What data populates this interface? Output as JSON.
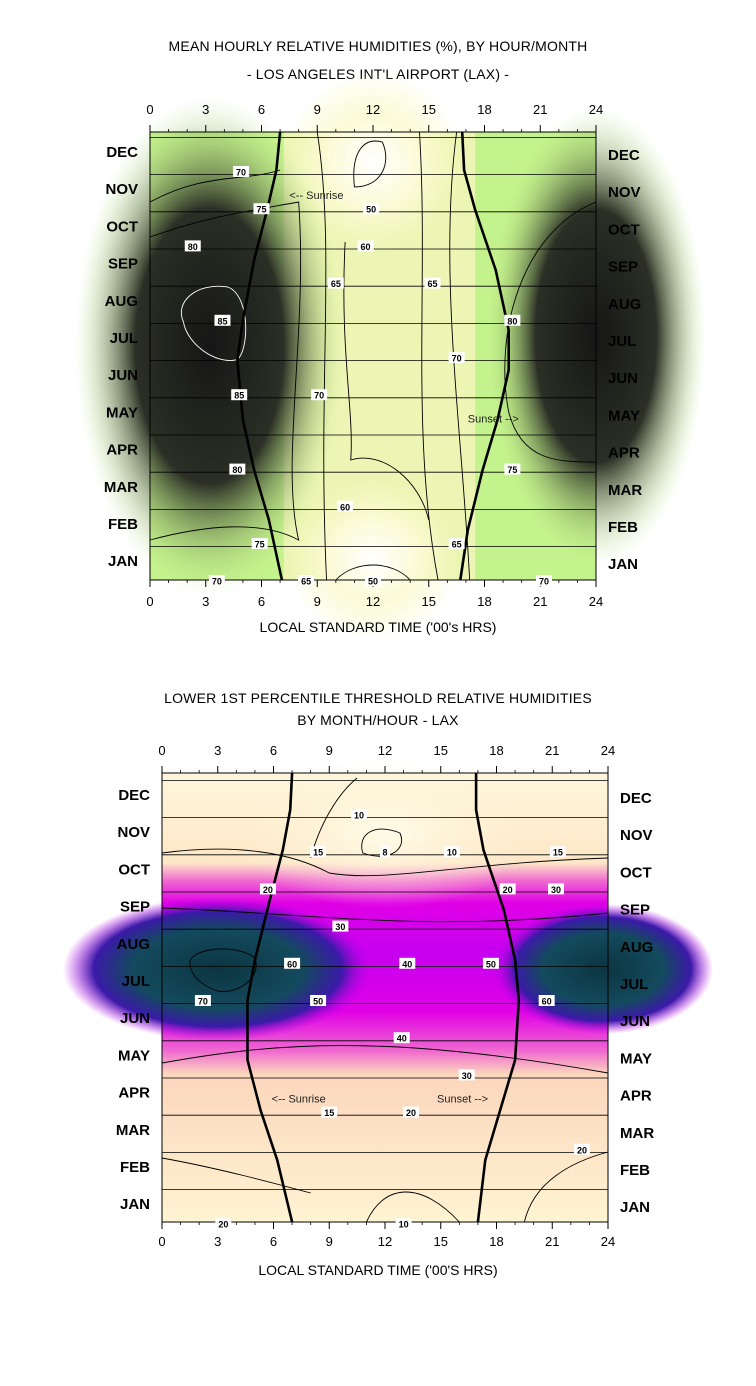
{
  "chart_data": [
    {
      "type": "heatmap",
      "title": "MEAN HOURLY RELATIVE HUMIDITIES (%), BY HOUR/MONTH",
      "subtitle": "- LOS ANGELES INT'L AIRPORT (LAX) -",
      "xlabel": "LOCAL STANDARD TIME ('00's HRS)",
      "ylabel": "",
      "x_ticks": [
        "0",
        "3",
        "6",
        "9",
        "12",
        "15",
        "18",
        "21",
        "24"
      ],
      "xlim": [
        0,
        24
      ],
      "months": [
        "DEC",
        "NOV",
        "OCT",
        "SEP",
        "AUG",
        "JUL",
        "JUN",
        "MAY",
        "APR",
        "MAR",
        "FEB",
        "JAN"
      ],
      "color_scale": {
        "low": "#ffffff",
        "mid": "#c4f28c",
        "high": "#1c1c1c"
      },
      "contour_labels": [
        {
          "text": "70",
          "x": 4.9,
          "month": "DEC"
        },
        {
          "text": "50",
          "x": 11.9,
          "month": "NOV"
        },
        {
          "text": "75",
          "x": 6.0,
          "month": "NOV"
        },
        {
          "text": "80",
          "x": 2.3,
          "month": "OCT"
        },
        {
          "text": "60",
          "x": 11.6,
          "month": "OCT"
        },
        {
          "text": "65",
          "x": 10.0,
          "month": "SEP"
        },
        {
          "text": "65",
          "x": 15.2,
          "month": "SEP"
        },
        {
          "text": "85",
          "x": 3.9,
          "month": "AUG"
        },
        {
          "text": "80",
          "x": 19.5,
          "month": "AUG"
        },
        {
          "text": "70",
          "x": 16.5,
          "month": "JUL"
        },
        {
          "text": "70",
          "x": 9.1,
          "month": "JUN"
        },
        {
          "text": "85",
          "x": 4.8,
          "month": "JUN"
        },
        {
          "text": "75",
          "x": 19.5,
          "month": "APR"
        },
        {
          "text": "80",
          "x": 4.7,
          "month": "APR"
        },
        {
          "text": "60",
          "x": 10.5,
          "month": "MAR"
        },
        {
          "text": "65",
          "x": 16.5,
          "month": "FEB"
        },
        {
          "text": "75",
          "x": 5.9,
          "month": "FEB"
        },
        {
          "text": "70",
          "x": 21.2,
          "month": "JAN"
        },
        {
          "text": "65",
          "x": 8.4,
          "month": "JAN"
        },
        {
          "text": "50",
          "x": 12.0,
          "month": "JAN"
        },
        {
          "text": "70",
          "x": 3.6,
          "month": "JAN"
        }
      ],
      "annotations": [
        {
          "text": "<-- Sunrise",
          "x": 7.5,
          "month": "NOV"
        },
        {
          "text": "Sunset -->",
          "x": 17.1,
          "month": "MAY"
        }
      ]
    },
    {
      "type": "heatmap",
      "title": "LOWER 1ST PERCENTILE THRESHOLD RELATIVE HUMIDITIES",
      "subtitle": "BY MONTH/HOUR -  LAX",
      "xlabel": "LOCAL STANDARD TIME ('00'S HRS)",
      "ylabel": "",
      "x_ticks": [
        "0",
        "3",
        "6",
        "9",
        "12",
        "15",
        "18",
        "21",
        "24"
      ],
      "xlim": [
        0,
        24
      ],
      "months": [
        "DEC",
        "NOV",
        "OCT",
        "SEP",
        "AUG",
        "JUL",
        "JUN",
        "MAY",
        "APR",
        "MAR",
        "FEB",
        "JAN"
      ],
      "color_scale": {
        "low": "#fff6d8",
        "mid": "#e400e4",
        "high": "#0f3f4c"
      },
      "contour_labels": [
        {
          "text": "10",
          "x": 10.6,
          "month": "DEC"
        },
        {
          "text": "15",
          "x": 8.4,
          "month": "NOV"
        },
        {
          "text": "8",
          "x": 12.0,
          "month": "NOV"
        },
        {
          "text": "10",
          "x": 15.6,
          "month": "NOV"
        },
        {
          "text": "15",
          "x": 21.3,
          "month": "NOV"
        },
        {
          "text": "20",
          "x": 5.7,
          "month": "OCT"
        },
        {
          "text": "20",
          "x": 18.6,
          "month": "OCT"
        },
        {
          "text": "30",
          "x": 21.2,
          "month": "OCT"
        },
        {
          "text": "30",
          "x": 9.6,
          "month": "SEP"
        },
        {
          "text": "40",
          "x": 13.2,
          "month": "AUG"
        },
        {
          "text": "50",
          "x": 17.7,
          "month": "AUG"
        },
        {
          "text": "60",
          "x": 7.0,
          "month": "AUG"
        },
        {
          "text": "70",
          "x": 2.2,
          "month": "JUL"
        },
        {
          "text": "50",
          "x": 8.4,
          "month": "JUL"
        },
        {
          "text": "60",
          "x": 20.7,
          "month": "JUL"
        },
        {
          "text": "40",
          "x": 12.9,
          "month": "JUN"
        },
        {
          "text": "30",
          "x": 16.4,
          "month": "MAY"
        },
        {
          "text": "20",
          "x": 13.4,
          "month": "APR"
        },
        {
          "text": "15",
          "x": 9.0,
          "month": "APR"
        },
        {
          "text": "20",
          "x": 22.6,
          "month": "MAR"
        },
        {
          "text": "20",
          "x": 3.3,
          "month": "JAN"
        },
        {
          "text": "10",
          "x": 13.0,
          "month": "JAN"
        }
      ],
      "annotations": [
        {
          "text": "<-- Sunrise",
          "x": 5.9,
          "month": "APR"
        },
        {
          "text": "Sunset -->",
          "x": 14.8,
          "month": "APR"
        }
      ]
    }
  ]
}
